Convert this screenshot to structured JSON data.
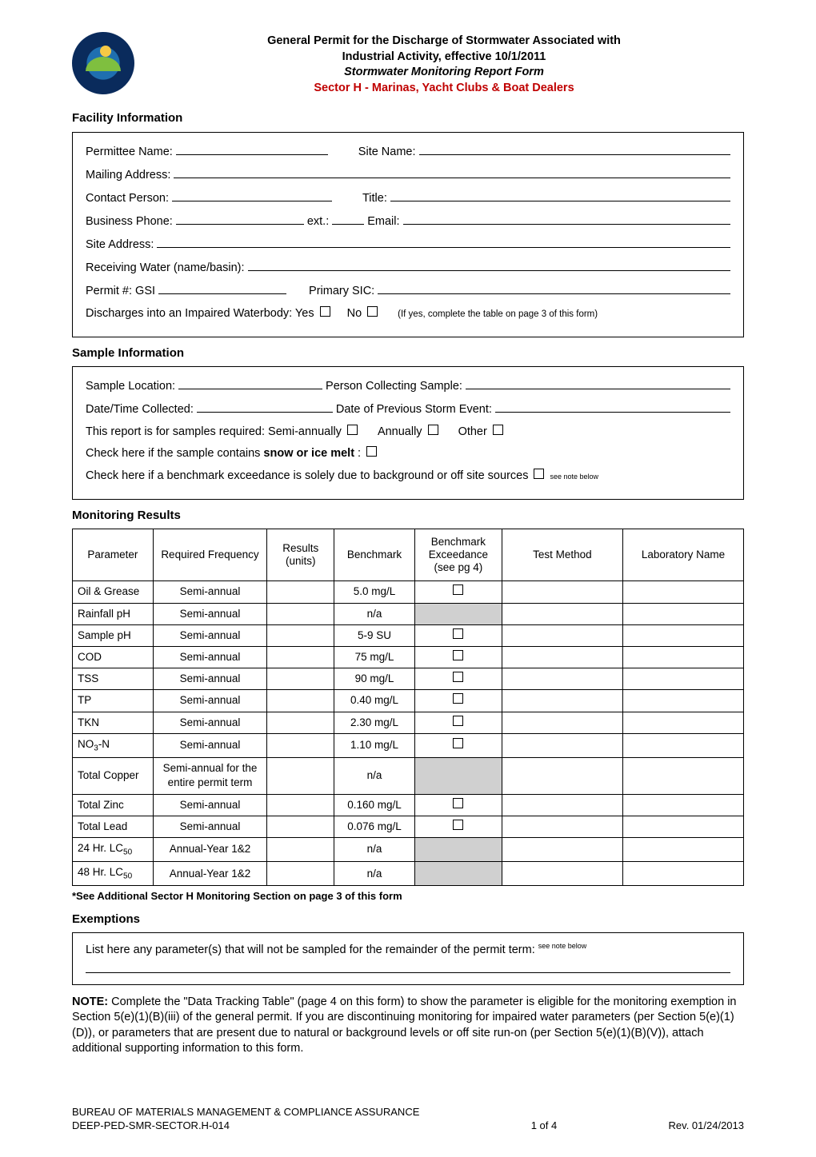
{
  "header": {
    "line1": "General Permit for the Discharge of Stormwater Associated with",
    "line2": "Industrial Activity, effective 10/1/2011",
    "line3": "Stormwater Monitoring Report Form",
    "sector": "Sector H - Marinas, Yacht Clubs & Boat Dealers"
  },
  "facility": {
    "heading": "Facility Information",
    "permittee_label": "Permittee Name:",
    "site_name_label": "Site Name:",
    "mailing_label": "Mailing Address:",
    "contact_label": "Contact Person:",
    "title_label": "Title:",
    "phone_label": "Business Phone:",
    "ext_label": "ext.:",
    "email_label": "Email:",
    "site_addr_label": "Site Address:",
    "rw_label": "Receiving Water (name/basin):",
    "permit_label": "Permit #: GSI",
    "sic_label": "Primary SIC:",
    "discharge_label": "Discharges into an Impaired Waterbody: Yes",
    "no_label": "No",
    "discharge_note": "(If yes, complete the table on page 3 of this form)"
  },
  "sample": {
    "heading": "Sample Information",
    "loc_label": "Sample Location:",
    "collector_label": "Person Collecting Sample:",
    "dt_label": "Date/Time Collected:",
    "prev_label": "Date of Previous Storm Event:",
    "req_label": "This report is for samples required:   Semi-annually",
    "annually_label": "Annually",
    "other_label": "Other",
    "snow_label_pre": "Check here if the sample contains ",
    "snow_bold": "snow or ice melt",
    "bg_label": "Check here if a benchmark exceedance is solely due to background or off site sources",
    "see_note": "see note below"
  },
  "results": {
    "heading": "Monitoring Results",
    "cols": {
      "param": "Parameter",
      "freq": "Required Frequency",
      "res": "Results (units)",
      "bench": "Benchmark",
      "exc": "Benchmark Exceedance (see pg 4)",
      "method": "Test Method",
      "lab": "Laboratory Name"
    },
    "rows": [
      {
        "param": "Oil & Grease",
        "freq": "Semi-annual",
        "bench": "5.0 mg/L",
        "shaded": false
      },
      {
        "param": "Rainfall pH",
        "freq": "Semi-annual",
        "bench": "n/a",
        "shaded": true
      },
      {
        "param": "Sample pH",
        "freq": "Semi-annual",
        "bench": "5-9 SU",
        "shaded": false
      },
      {
        "param": "COD",
        "freq": "Semi-annual",
        "bench": "75 mg/L",
        "shaded": false
      },
      {
        "param": "TSS",
        "freq": "Semi-annual",
        "bench": "90 mg/L",
        "shaded": false
      },
      {
        "param": "TP",
        "freq": "Semi-annual",
        "bench": "0.40 mg/L",
        "shaded": false
      },
      {
        "param": "TKN",
        "freq": "Semi-annual",
        "bench": "2.30 mg/L",
        "shaded": false
      },
      {
        "param": "NO₃-N",
        "freq": "Semi-annual",
        "bench": "1.10 mg/L",
        "shaded": false
      },
      {
        "param": "Total Copper",
        "freq": "Semi-annual for the entire permit term",
        "bench": "n/a",
        "shaded": true
      },
      {
        "param": "Total Zinc",
        "freq": "Semi-annual",
        "bench": "0.160 mg/L",
        "shaded": false
      },
      {
        "param": "Total Lead",
        "freq": "Semi-annual",
        "bench": "0.076 mg/L",
        "shaded": false
      },
      {
        "param": "24 Hr. LC₅₀",
        "freq": "Annual-Year 1&2",
        "bench": "n/a",
        "shaded": true
      },
      {
        "param": "48 Hr. LC₅₀",
        "freq": "Annual-Year 1&2",
        "bench": "n/a",
        "shaded": true
      }
    ],
    "footnote": "*See Additional Sector H Monitoring Section on page 3 of this form"
  },
  "exempt": {
    "heading": "Exemptions",
    "text": "List here any parameter(s) that will not be sampled for the remainder of the permit term:",
    "see_note": "see note below"
  },
  "note": {
    "bold": "NOTE:",
    "body": " Complete the \"Data Tracking Table\" (page 4 on this form) to show the parameter is eligible for the monitoring exemption in Section 5(e)(1)(B)(iii) of the general permit.  If you are discontinuing monitoring for impaired water parameters (per Section 5(e)(1)(D)), or parameters that are present due to natural or background levels or off site run-on (per Section 5(e)(1)(B)(V)), attach additional supporting information to this form."
  },
  "footer": {
    "bureau": "BUREAU OF MATERIALS MANAGEMENT & COMPLIANCE ASSURANCE",
    "docid": "DEEP-PED-SMR-SECTOR.H-014",
    "page": "1 of 4",
    "rev": "Rev.  01/24/2013"
  }
}
